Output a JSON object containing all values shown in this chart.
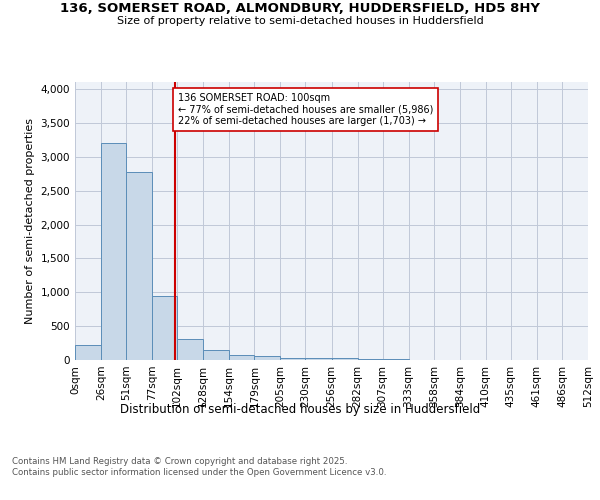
{
  "title_line1": "136, SOMERSET ROAD, ALMONDBURY, HUDDERSFIELD, HD5 8HY",
  "title_line2": "Size of property relative to semi-detached houses in Huddersfield",
  "xlabel": "Distribution of semi-detached houses by size in Huddersfield",
  "ylabel": "Number of semi-detached properties",
  "footnote": "Contains HM Land Registry data © Crown copyright and database right 2025.\nContains public sector information licensed under the Open Government Licence v3.0.",
  "bin_edges": [
    0,
    26,
    51,
    77,
    102,
    128,
    154,
    179,
    205,
    230,
    256,
    282,
    307,
    333,
    358,
    384,
    410,
    435,
    461,
    486,
    512
  ],
  "bin_labels": [
    "0sqm",
    "26sqm",
    "51sqm",
    "77sqm",
    "102sqm",
    "128sqm",
    "154sqm",
    "179sqm",
    "205sqm",
    "230sqm",
    "256sqm",
    "282sqm",
    "307sqm",
    "333sqm",
    "358sqm",
    "384sqm",
    "410sqm",
    "435sqm",
    "461sqm",
    "486sqm",
    "512sqm"
  ],
  "bar_values": [
    220,
    3200,
    2775,
    950,
    310,
    145,
    80,
    55,
    35,
    35,
    25,
    15,
    10,
    5,
    0,
    0,
    0,
    0,
    0,
    0
  ],
  "bar_color": "#c8d8e8",
  "bar_edgecolor": "#5b8db8",
  "subject_value": 100,
  "subject_line_color": "#cc0000",
  "subject_label": "136 SOMERSET ROAD: 100sqm",
  "pct_smaller": 77,
  "n_smaller": 5986,
  "pct_larger": 22,
  "n_larger": 1703,
  "annotation_box_edgecolor": "#cc0000",
  "annotation_box_facecolor": "#ffffff",
  "ylim": [
    0,
    4100
  ],
  "yticks": [
    0,
    500,
    1000,
    1500,
    2000,
    2500,
    3000,
    3500,
    4000
  ],
  "grid_color": "#c0c8d8",
  "bg_color": "#eef2f8",
  "fig_bg_color": "#ffffff"
}
